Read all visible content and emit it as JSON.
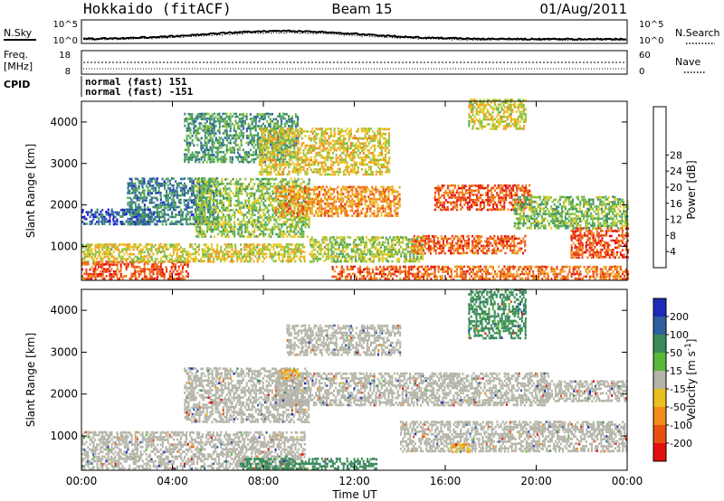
{
  "header": {
    "station": "Hokkaido (fitACF)",
    "beam": "Beam 15",
    "date": "01/Aug/2011"
  },
  "top_panels": {
    "nsky": {
      "label": "N.Sky",
      "ticks": [
        "10^5",
        "10^0"
      ],
      "right_label": "N.Search",
      "right_ticks": [
        "10^5",
        "10^0"
      ]
    },
    "freq": {
      "label_line1": "Freq.",
      "label_line2": "[MHz]",
      "ticks": [
        "18",
        "8"
      ],
      "right_label": "Nave",
      "right_ticks": [
        "60",
        "0"
      ]
    },
    "cpid": {
      "label": "CPID",
      "entries": [
        "normal (fast) 151",
        "normal (fast) -151"
      ]
    }
  },
  "chart_data": [
    {
      "type": "heatmap",
      "panel": "power",
      "ylabel": "Slant Range [km]",
      "xlabel": "",
      "x_ticks": [
        "00:00",
        "04:00",
        "08:00",
        "12:00",
        "16:00",
        "20:00",
        "00:00"
      ],
      "y_ticks": [
        1000,
        2000,
        3000,
        4000
      ],
      "xlim": [
        0,
        24
      ],
      "ylim": [
        180,
        4500
      ],
      "colorbar": {
        "label": "Power [dB]",
        "ticks": [
          "4",
          "8",
          "12",
          "16",
          "20",
          "24",
          "28"
        ],
        "colors": [
          "#1c1cd8",
          "#2f5fa8",
          "#3a8a6a",
          "#53a85a",
          "#8cc43a",
          "#e8c822",
          "#f0a020",
          "#f07818",
          "#e84010",
          "#e41010"
        ]
      },
      "regions": [
        {
          "t0": 0.0,
          "t1": 4.7,
          "r0": 180,
          "r1": 620,
          "value": 27
        },
        {
          "t0": 0.0,
          "t1": 9.8,
          "r0": 600,
          "r1": 1050,
          "value": 18
        },
        {
          "t0": 0.0,
          "t1": 3.0,
          "r0": 1500,
          "r1": 1900,
          "value": 6
        },
        {
          "t0": 2.0,
          "t1": 6.0,
          "r0": 1500,
          "r1": 2600,
          "value": 9
        },
        {
          "t0": 5.0,
          "t1": 10.0,
          "r0": 1200,
          "r1": 2600,
          "value": 15
        },
        {
          "t0": 4.5,
          "t1": 9.5,
          "r0": 3000,
          "r1": 4200,
          "value": 11
        },
        {
          "t0": 7.8,
          "t1": 13.5,
          "r0": 2700,
          "r1": 3800,
          "value": 19
        },
        {
          "t0": 8.5,
          "t1": 14.0,
          "r0": 1700,
          "r1": 2400,
          "value": 23
        },
        {
          "t0": 10.0,
          "t1": 15.0,
          "r0": 600,
          "r1": 1200,
          "value": 16
        },
        {
          "t0": 11.0,
          "t1": 15.5,
          "r0": 180,
          "r1": 500,
          "value": 26
        },
        {
          "t0": 14.5,
          "t1": 19.5,
          "r0": 800,
          "r1": 1250,
          "value": 26
        },
        {
          "t0": 15.5,
          "t1": 19.8,
          "r0": 1850,
          "r1": 2450,
          "value": 27
        },
        {
          "t0": 15.5,
          "t1": 24.0,
          "r0": 180,
          "r1": 500,
          "value": 25
        },
        {
          "t0": 17.0,
          "t1": 19.5,
          "r0": 3800,
          "r1": 4500,
          "value": 18
        },
        {
          "t0": 19.0,
          "t1": 24.0,
          "r0": 1400,
          "r1": 2200,
          "value": 14
        },
        {
          "t0": 21.5,
          "t1": 24.0,
          "r0": 700,
          "r1": 1400,
          "value": 27
        }
      ]
    },
    {
      "type": "heatmap",
      "panel": "velocity",
      "ylabel": "Slant Range [km]",
      "xlabel": "Time UT",
      "x_ticks": [
        "00:00",
        "04:00",
        "08:00",
        "12:00",
        "16:00",
        "20:00",
        "00:00"
      ],
      "y_ticks": [
        1000,
        2000,
        3000,
        4000
      ],
      "xlim": [
        0,
        24
      ],
      "ylim": [
        180,
        4500
      ],
      "colorbar": {
        "label": "Velocity [m s^-1]",
        "ticks": [
          "200",
          "100",
          "50",
          "15",
          "-15",
          "-50",
          "-100",
          "-200"
        ],
        "colors": [
          "#1c2cb8",
          "#2e60a0",
          "#3a8a5a",
          "#58b83a",
          "#b4b4a8",
          "#e8c020",
          "#f08c18",
          "#e85010",
          "#e41010"
        ]
      },
      "regions": [
        {
          "t0": 0.0,
          "t1": 9.8,
          "r0": 180,
          "r1": 1100,
          "value": 0
        },
        {
          "t0": 4.5,
          "t1": 10.0,
          "r0": 1300,
          "r1": 2600,
          "value": 0
        },
        {
          "t0": 8.5,
          "t1": 14.0,
          "r0": 1700,
          "r1": 2500,
          "value": 0
        },
        {
          "t0": 9.0,
          "t1": 14.0,
          "r0": 2900,
          "r1": 3600,
          "value": 0
        },
        {
          "t0": 8.7,
          "t1": 9.5,
          "r0": 2350,
          "r1": 2550,
          "value": -30
        },
        {
          "t0": 14.0,
          "t1": 20.5,
          "r0": 1700,
          "r1": 2500,
          "value": 0
        },
        {
          "t0": 14.0,
          "t1": 24.0,
          "r0": 600,
          "r1": 1300,
          "value": 0
        },
        {
          "t0": 16.2,
          "t1": 17.0,
          "r0": 580,
          "r1": 760,
          "value": -30
        },
        {
          "t0": 17.0,
          "t1": 19.5,
          "r0": 3300,
          "r1": 4500,
          "value": 40
        },
        {
          "t0": 7.0,
          "t1": 13.0,
          "r0": 180,
          "r1": 450,
          "value": 60
        },
        {
          "t0": 20.0,
          "t1": 24.0,
          "r0": 1800,
          "r1": 2300,
          "value": 0
        }
      ]
    }
  ]
}
